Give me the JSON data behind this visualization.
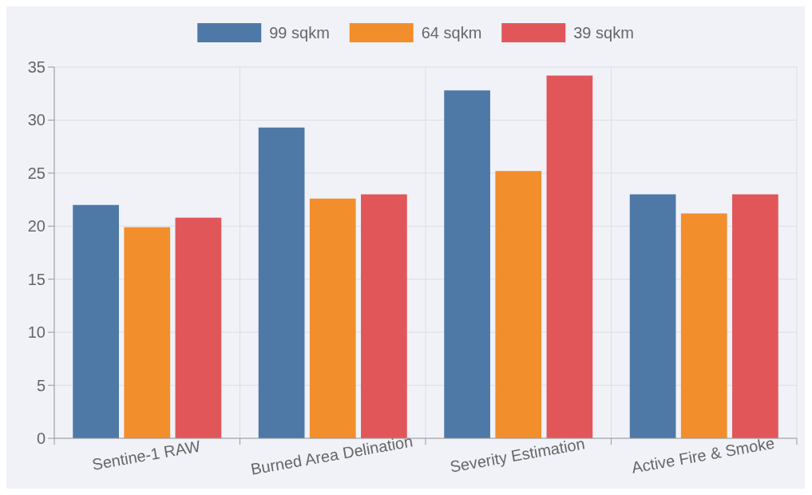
{
  "chart_data": {
    "type": "bar",
    "categories": [
      "Sentine-1 RAW",
      "Burned Area Delination",
      "Severity Estimation",
      "Active Fire & Smoke"
    ],
    "series": [
      {
        "name": "99 sqkm",
        "color": "#4e79a7",
        "values": [
          22,
          29.3,
          32.8,
          23
        ]
      },
      {
        "name": "64 sqkm",
        "color": "#f28e2b",
        "values": [
          19.9,
          22.6,
          25.2,
          21.2
        ]
      },
      {
        "name": "39 sqkm",
        "color": "#e15759",
        "values": [
          20.8,
          23,
          34.2,
          23
        ]
      }
    ],
    "ylim": [
      0,
      35
    ],
    "yticks": [
      0,
      5,
      10,
      15,
      20,
      25,
      30,
      35
    ],
    "grid": true,
    "legend": "top"
  }
}
